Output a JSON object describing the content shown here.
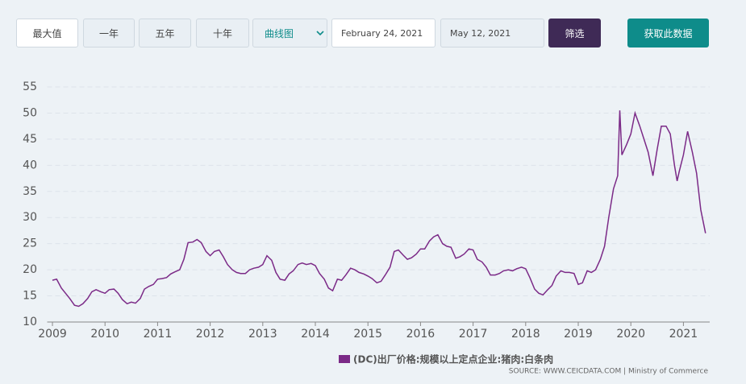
{
  "controls": {
    "range_buttons": [
      "最大值",
      "一年",
      "五年",
      "十年"
    ],
    "chart_type": "曲线图",
    "date_from": "February 24, 2021",
    "date_to": "May 12, 2021",
    "filter": "筛选",
    "download": "获取此数据"
  },
  "chart_data": {
    "type": "line",
    "x": [
      2009.0,
      2009.08,
      2009.17,
      2009.25,
      2009.33,
      2009.42,
      2009.5,
      2009.58,
      2009.67,
      2009.75,
      2009.83,
      2009.92,
      2010.0,
      2010.08,
      2010.17,
      2010.25,
      2010.33,
      2010.42,
      2010.5,
      2010.58,
      2010.67,
      2010.75,
      2010.83,
      2010.92,
      2011.0,
      2011.08,
      2011.17,
      2011.25,
      2011.33,
      2011.42,
      2011.5,
      2011.58,
      2011.67,
      2011.75,
      2011.83,
      2011.92,
      2012.0,
      2012.08,
      2012.17,
      2012.25,
      2012.33,
      2012.42,
      2012.5,
      2012.58,
      2012.67,
      2012.75,
      2012.83,
      2012.92,
      2013.0,
      2013.08,
      2013.17,
      2013.25,
      2013.33,
      2013.42,
      2013.5,
      2013.58,
      2013.67,
      2013.75,
      2013.83,
      2013.92,
      2014.0,
      2014.08,
      2014.17,
      2014.25,
      2014.33,
      2014.42,
      2014.5,
      2014.58,
      2014.67,
      2014.75,
      2014.83,
      2014.92,
      2015.0,
      2015.08,
      2015.17,
      2015.25,
      2015.33,
      2015.42,
      2015.5,
      2015.58,
      2015.67,
      2015.75,
      2015.83,
      2015.92,
      2016.0,
      2016.08,
      2016.17,
      2016.25,
      2016.33,
      2016.42,
      2016.5,
      2016.58,
      2016.67,
      2016.75,
      2016.83,
      2016.92,
      2017.0,
      2017.08,
      2017.17,
      2017.25,
      2017.33,
      2017.42,
      2017.5,
      2017.58,
      2017.67,
      2017.75,
      2017.83,
      2017.92,
      2018.0,
      2018.08,
      2018.17,
      2018.25,
      2018.33,
      2018.42,
      2018.5,
      2018.58,
      2018.67,
      2018.75,
      2018.83,
      2018.92,
      2019.0,
      2019.08,
      2019.17,
      2019.25,
      2019.33,
      2019.42,
      2019.5,
      2019.58,
      2019.67,
      2019.75,
      2019.79,
      2019.83,
      2019.92,
      2020.0,
      2020.08,
      2020.17,
      2020.25,
      2020.33,
      2020.42,
      2020.5,
      2020.58,
      2020.67,
      2020.75,
      2020.83,
      2020.88,
      2020.92,
      2021.0,
      2021.08,
      2021.17,
      2021.25,
      2021.33,
      2021.42
    ],
    "series": [
      {
        "name": "(DC)出厂价格:规模以上定点企业:猪肉:白条肉",
        "color": "#7b2a87",
        "values": [
          18,
          18.2,
          16.5,
          15.5,
          14.5,
          13.2,
          13,
          13.5,
          14.5,
          15.8,
          16.2,
          15.8,
          15.5,
          16.2,
          16.3,
          15.5,
          14.3,
          13.5,
          13.8,
          13.6,
          14.5,
          16.3,
          16.8,
          17.2,
          18.2,
          18.3,
          18.5,
          19.2,
          19.6,
          20,
          22,
          25.2,
          25.3,
          25.8,
          25.2,
          23.5,
          22.7,
          23.5,
          23.8,
          22.5,
          21,
          20,
          19.5,
          19.3,
          19.3,
          20,
          20.3,
          20.5,
          21,
          22.7,
          21.8,
          19.5,
          18.2,
          18,
          19.2,
          19.8,
          21,
          21.3,
          21,
          21.2,
          20.8,
          19.3,
          18.2,
          16.5,
          16,
          18.2,
          18,
          19,
          20.3,
          20,
          19.5,
          19.2,
          18.8,
          18.3,
          17.5,
          17.8,
          19,
          20.5,
          23.5,
          23.8,
          22.8,
          22,
          22.3,
          23,
          24,
          24,
          25.5,
          26.3,
          26.7,
          25,
          24.5,
          24.3,
          22.2,
          22.5,
          23,
          24,
          23.8,
          22,
          21.5,
          20.5,
          19,
          19,
          19.3,
          19.8,
          20,
          19.8,
          20.2,
          20.5,
          20.2,
          18.5,
          16.3,
          15.5,
          15.2,
          16.2,
          17,
          18.8,
          19.8,
          19.5,
          19.5,
          19.3,
          17.2,
          17.5,
          19.8,
          19.5,
          20,
          22,
          24.5,
          30,
          35.5,
          38,
          50.5,
          42,
          44,
          46,
          50,
          47.5,
          45,
          42.5,
          38,
          43,
          47.5,
          47.5,
          46,
          40,
          37,
          38.8,
          42,
          46.5,
          42.5,
          38.5,
          31.5,
          27
        ]
      }
    ],
    "xlim": [
      2008.9,
      2021.5
    ],
    "xticks": [
      2009,
      2010,
      2011,
      2012,
      2013,
      2014,
      2015,
      2016,
      2017,
      2018,
      2019,
      2020,
      2021
    ],
    "ylim": [
      10,
      55
    ],
    "yticks": [
      10,
      15,
      20,
      25,
      30,
      35,
      40,
      45,
      50,
      55
    ],
    "grid": true,
    "source": "SOURCE: WWW.CEICDATA.COM | Ministry of Commerce"
  }
}
